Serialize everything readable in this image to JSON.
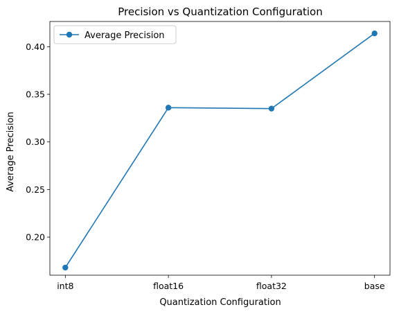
{
  "chart_data": {
    "type": "line",
    "title": "Precision vs Quantization Configuration",
    "xlabel": "Quantization Configuration",
    "ylabel": "Average Precision",
    "categories": [
      "int8",
      "float16",
      "float32",
      "base"
    ],
    "series": [
      {
        "name": "Average Precision",
        "values": [
          0.168,
          0.336,
          0.335,
          0.414
        ],
        "color": "#1f77b4",
        "marker": "circle"
      }
    ],
    "ylim": [
      0.16,
      0.4265
    ],
    "yticks": [
      0.2,
      0.25,
      0.3,
      0.35,
      0.4
    ],
    "ytick_labels": [
      "0.20",
      "0.25",
      "0.30",
      "0.35",
      "0.40"
    ],
    "grid": false,
    "legend_position": "top-left"
  }
}
